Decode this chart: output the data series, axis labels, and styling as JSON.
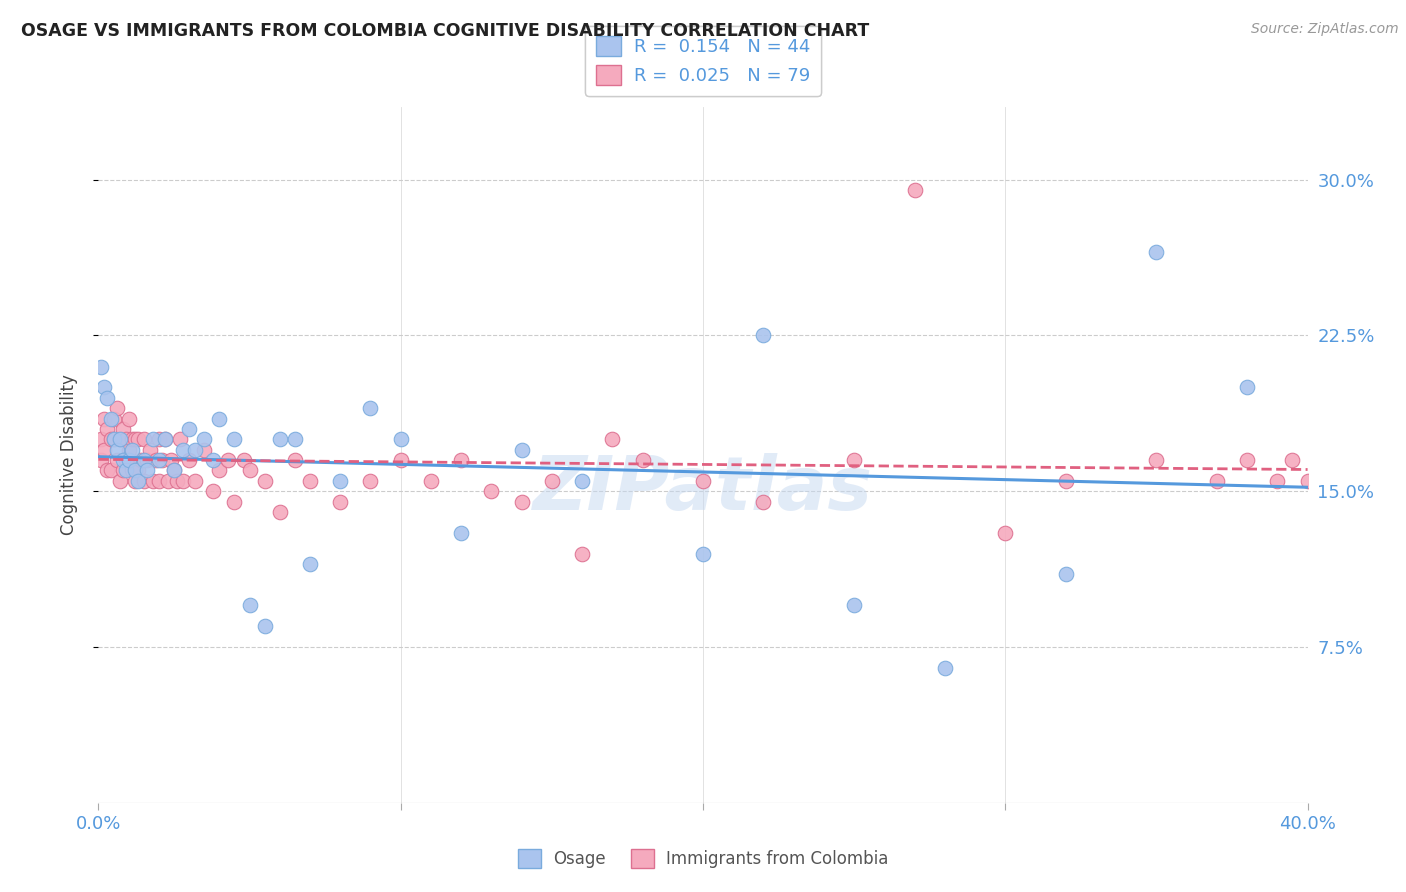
{
  "title": "OSAGE VS IMMIGRANTS FROM COLOMBIA COGNITIVE DISABILITY CORRELATION CHART",
  "source": "Source: ZipAtlas.com",
  "ylabel": "Cognitive Disability",
  "y_ticks": [
    0.075,
    0.15,
    0.225,
    0.3
  ],
  "y_tick_labels": [
    "7.5%",
    "15.0%",
    "22.5%",
    "30.0%"
  ],
  "xmin": 0.0,
  "xmax": 0.4,
  "ymin": 0.0,
  "ymax": 0.335,
  "osage_color": "#aac4ee",
  "colombia_color": "#f5aabe",
  "osage_line_color": "#5599dd",
  "colombia_line_color": "#e06080",
  "osage_R": 0.154,
  "osage_N": 44,
  "colombia_R": 0.025,
  "colombia_N": 79,
  "legend_label_osage": "Osage",
  "legend_label_colombia": "Immigrants from Colombia",
  "watermark": "ZIPatlas",
  "osage_x": [
    0.001,
    0.002,
    0.003,
    0.004,
    0.005,
    0.006,
    0.007,
    0.008,
    0.009,
    0.01,
    0.011,
    0.012,
    0.013,
    0.015,
    0.016,
    0.018,
    0.02,
    0.022,
    0.025,
    0.028,
    0.03,
    0.032,
    0.035,
    0.038,
    0.04,
    0.045,
    0.05,
    0.055,
    0.06,
    0.065,
    0.07,
    0.08,
    0.09,
    0.1,
    0.12,
    0.14,
    0.16,
    0.2,
    0.22,
    0.25,
    0.28,
    0.32,
    0.35,
    0.38
  ],
  "osage_y": [
    0.21,
    0.2,
    0.195,
    0.185,
    0.175,
    0.17,
    0.175,
    0.165,
    0.16,
    0.165,
    0.17,
    0.16,
    0.155,
    0.165,
    0.16,
    0.175,
    0.165,
    0.175,
    0.16,
    0.17,
    0.18,
    0.17,
    0.175,
    0.165,
    0.185,
    0.175,
    0.095,
    0.085,
    0.175,
    0.175,
    0.115,
    0.155,
    0.19,
    0.175,
    0.13,
    0.17,
    0.155,
    0.12,
    0.225,
    0.095,
    0.065,
    0.11,
    0.265,
    0.2
  ],
  "colombia_x": [
    0.001,
    0.001,
    0.002,
    0.002,
    0.003,
    0.003,
    0.004,
    0.004,
    0.005,
    0.005,
    0.006,
    0.006,
    0.007,
    0.007,
    0.008,
    0.008,
    0.009,
    0.009,
    0.01,
    0.01,
    0.011,
    0.011,
    0.012,
    0.012,
    0.013,
    0.013,
    0.014,
    0.015,
    0.015,
    0.016,
    0.017,
    0.018,
    0.019,
    0.02,
    0.02,
    0.021,
    0.022,
    0.023,
    0.024,
    0.025,
    0.026,
    0.027,
    0.028,
    0.03,
    0.032,
    0.035,
    0.038,
    0.04,
    0.043,
    0.045,
    0.048,
    0.05,
    0.055,
    0.06,
    0.065,
    0.07,
    0.08,
    0.09,
    0.1,
    0.11,
    0.12,
    0.13,
    0.14,
    0.15,
    0.16,
    0.17,
    0.18,
    0.2,
    0.22,
    0.25,
    0.27,
    0.3,
    0.32,
    0.35,
    0.37,
    0.38,
    0.39,
    0.395,
    0.4
  ],
  "colombia_y": [
    0.175,
    0.165,
    0.185,
    0.17,
    0.18,
    0.16,
    0.175,
    0.16,
    0.185,
    0.175,
    0.19,
    0.165,
    0.175,
    0.155,
    0.18,
    0.16,
    0.175,
    0.165,
    0.185,
    0.17,
    0.175,
    0.16,
    0.175,
    0.155,
    0.175,
    0.16,
    0.165,
    0.175,
    0.155,
    0.165,
    0.17,
    0.155,
    0.165,
    0.175,
    0.155,
    0.165,
    0.175,
    0.155,
    0.165,
    0.16,
    0.155,
    0.175,
    0.155,
    0.165,
    0.155,
    0.17,
    0.15,
    0.16,
    0.165,
    0.145,
    0.165,
    0.16,
    0.155,
    0.14,
    0.165,
    0.155,
    0.145,
    0.155,
    0.165,
    0.155,
    0.165,
    0.15,
    0.145,
    0.155,
    0.12,
    0.175,
    0.165,
    0.155,
    0.145,
    0.165,
    0.295,
    0.13,
    0.155,
    0.165,
    0.155,
    0.165,
    0.155,
    0.165,
    0.155
  ]
}
